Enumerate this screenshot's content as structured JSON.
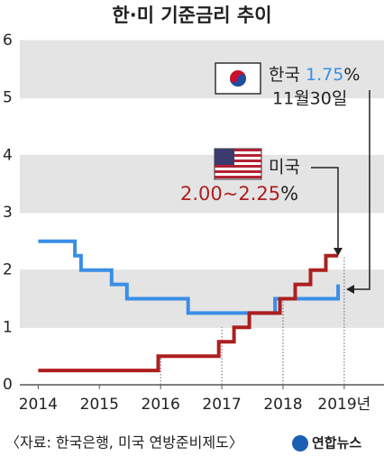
{
  "chart_data": {
    "type": "line",
    "title": "한·미 기준금리 추이",
    "xlim": [
      2013.7,
      2019.65
    ],
    "xticks": [
      2014,
      2015,
      2016,
      2017,
      2018,
      {
        "value": 2019,
        "label": "2019년"
      }
    ],
    "ylim": [
      0,
      6
    ],
    "yticks": [
      0,
      1,
      2,
      3,
      4,
      5,
      6
    ],
    "series": [
      {
        "name": "한국",
        "color": "#3a8ee6",
        "x": [
          2014.0,
          2014.6,
          2014.6,
          2014.7,
          2014.7,
          2015.2,
          2015.2,
          2015.45,
          2015.45,
          2016.45,
          2016.45,
          2017.87,
          2017.87,
          2018.9,
          2018.9
        ],
        "values": [
          2.5,
          2.5,
          2.25,
          2.25,
          2.0,
          2.0,
          1.75,
          1.75,
          1.5,
          1.5,
          1.25,
          1.25,
          1.5,
          1.5,
          1.75
        ]
      },
      {
        "name": "미국",
        "color": "#ad1f1f",
        "x": [
          2014.0,
          2015.96,
          2015.96,
          2016.95,
          2016.95,
          2017.2,
          2017.2,
          2017.45,
          2017.45,
          2017.95,
          2017.95,
          2018.2,
          2018.2,
          2018.45,
          2018.45,
          2018.7,
          2018.7,
          2018.9
        ],
        "values": [
          0.25,
          0.25,
          0.5,
          0.5,
          0.75,
          0.75,
          1.0,
          1.0,
          1.25,
          1.25,
          1.5,
          1.5,
          1.75,
          1.75,
          2.0,
          2.0,
          2.25,
          2.25
        ]
      }
    ],
    "annotations": {
      "korea": {
        "rate": "1.75",
        "unit": "%",
        "date": "11월30일"
      },
      "us": {
        "rate": "2.00~2.25",
        "unit": "%"
      }
    },
    "source": "〈자료: 한국은행, 미국 연방준비제도〉",
    "logo": "연합뉴스"
  }
}
